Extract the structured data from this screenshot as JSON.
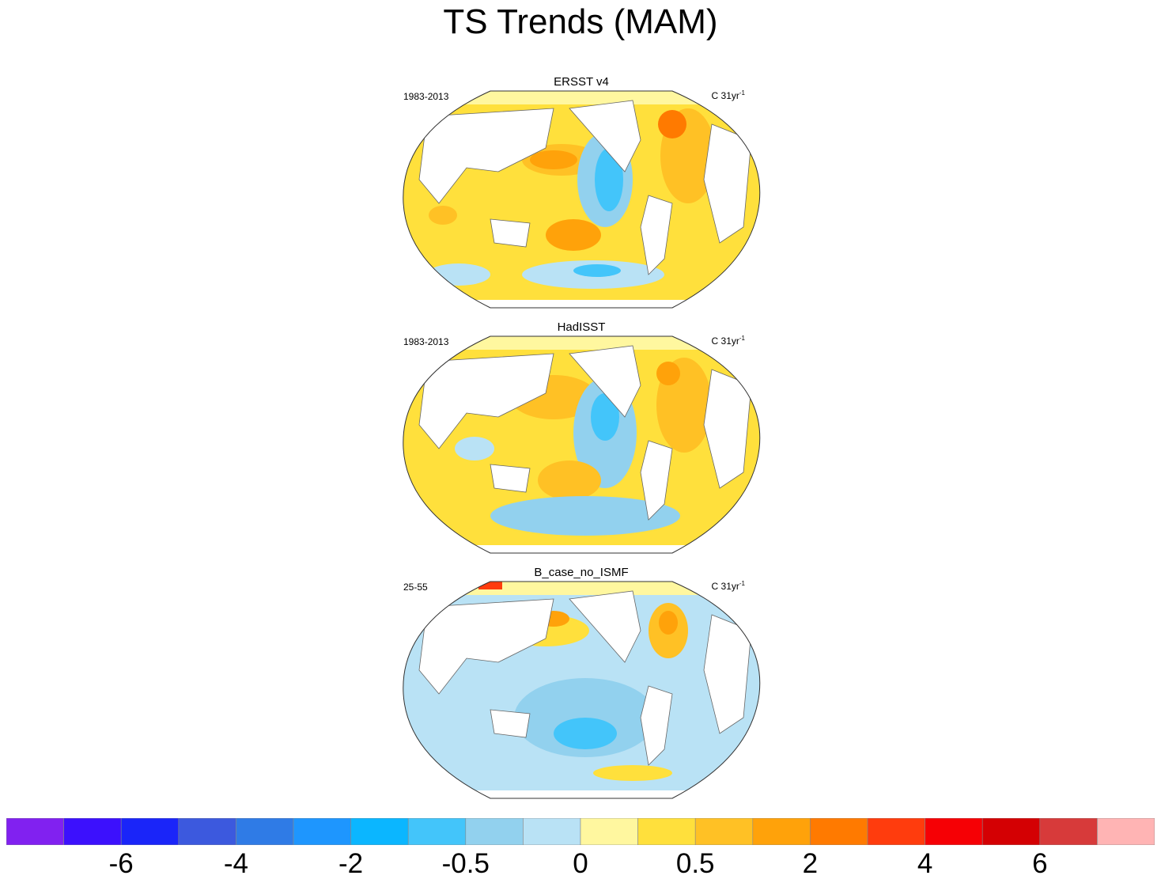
{
  "title": "TS Trends (MAM)",
  "panels": [
    {
      "name": "ERSST v4",
      "period": "1983-2013",
      "units_base": "C 31yr",
      "units_exp": "-1"
    },
    {
      "name": "HadISST",
      "period": "1983-2013",
      "units_base": "C 31yr",
      "units_exp": "-1"
    },
    {
      "name": "B_case_no_ISMF",
      "period": "25-55",
      "units_base": "C 31yr",
      "units_exp": "-1"
    }
  ],
  "chart_data": {
    "type": "heatmap",
    "title": "TS Trends (MAM)",
    "projection": "global map",
    "panels": [
      "ERSST v4",
      "HadISST",
      "B_case_no_ISMF"
    ],
    "periods": [
      "1983-2013",
      "1983-2013",
      "25-55"
    ],
    "units": "C 31yr-1",
    "colorbar": {
      "colors": [
        "#8121f0",
        "#3c10fd",
        "#1a25f9",
        "#3c59de",
        "#2f7be6",
        "#1e96fe",
        "#0bb6ff",
        "#43c5fa",
        "#92d1ee",
        "#b9e2f5",
        "#fff79f",
        "#ffe03c",
        "#ffc125",
        "#ffa20a",
        "#ff7a00",
        "#ff3c0d",
        "#f60005",
        "#d40003",
        "#d73a3a",
        "#ffb4b4"
      ],
      "tick_labels": [
        "-6",
        "-4",
        "-2",
        "-0.5",
        "0",
        "0.5",
        "2",
        "4",
        "6"
      ],
      "tick_boundaries": [
        2,
        4,
        6,
        8,
        10,
        12,
        14,
        16,
        18
      ]
    }
  }
}
